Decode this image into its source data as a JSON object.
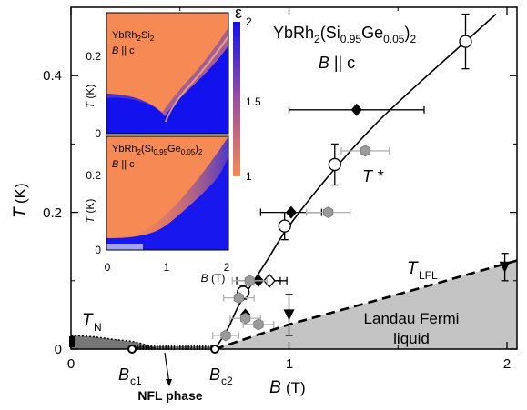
{
  "chart_data": {
    "type": "scatter",
    "title": "YbRh₂(Si₀.₉₅Ge₀.₀₅)₂",
    "subtitle": "B || c",
    "xlabel": "B",
    "xunit": "(T)",
    "ylabel": "T",
    "yunit": "(K)",
    "xlim": [
      0,
      2.1
    ],
    "ylim": [
      0,
      0.5
    ],
    "xticks": [
      "0",
      "1",
      "2"
    ],
    "yticks": [
      "0",
      "0.2",
      "0.4"
    ],
    "grid": false,
    "series": [
      {
        "name": "open-circles",
        "marker": "open-circle",
        "points": [
          {
            "x": 0.79,
            "y": 0.083,
            "xerr": 0.02,
            "yerr": 0.01
          },
          {
            "x": 0.98,
            "y": 0.18,
            "xerr": 0.0,
            "yerr": 0.02
          },
          {
            "x": 1.21,
            "y": 0.27,
            "xerr": 0.0,
            "yerr": 0.03
          },
          {
            "x": 1.81,
            "y": 0.45,
            "xerr": 0.0,
            "yerr": 0.04
          }
        ]
      },
      {
        "name": "filled-diamonds",
        "marker": "filled-diamond",
        "points": [
          {
            "x": 1.01,
            "y": 0.2,
            "xerr": 0.14
          },
          {
            "x": 1.31,
            "y": 0.35,
            "xerr": 0.31
          },
          {
            "x": 0.86,
            "y": 0.1,
            "xerr": 0.1
          },
          {
            "x": 0.8,
            "y": 0.05,
            "xerr": 0.0
          }
        ]
      },
      {
        "name": "open-diamonds",
        "marker": "open-diamond",
        "points": [
          {
            "x": 0.91,
            "y": 0.1,
            "xerr": 0.08
          }
        ]
      },
      {
        "name": "gray-hexagons",
        "marker": "gray-hexagon",
        "points": [
          {
            "x": 0.77,
            "y": 0.075,
            "xerr": 0.07
          },
          {
            "x": 0.82,
            "y": 0.1,
            "xerr": 0.08
          },
          {
            "x": 0.8,
            "y": 0.045,
            "xerr": 0.07
          },
          {
            "x": 0.71,
            "y": 0.02,
            "xerr": 0.06
          },
          {
            "x": 0.86,
            "y": 0.036,
            "xerr": 0.07
          },
          {
            "x": 1.18,
            "y": 0.2,
            "xerr": 0.1
          },
          {
            "x": 1.35,
            "y": 0.29,
            "xerr": 0.11
          }
        ]
      },
      {
        "name": "filled-triangles",
        "marker": "filled-down-triangle",
        "points": [
          {
            "x": 1.0,
            "y": 0.05,
            "yerr": 0.03
          },
          {
            "x": 1.99,
            "y": 0.12,
            "yerr": 0.02
          }
        ]
      }
    ],
    "tstar_line": [
      [
        0.66,
        0.0
      ],
      [
        0.72,
        0.03
      ],
      [
        0.78,
        0.07
      ],
      [
        0.9,
        0.13
      ],
      [
        1.0,
        0.18
      ],
      [
        1.2,
        0.26
      ],
      [
        1.4,
        0.33
      ],
      [
        1.6,
        0.39
      ],
      [
        1.81,
        0.45
      ],
      [
        1.95,
        0.49
      ]
    ],
    "tlfl_line": [
      [
        0.66,
        0.0
      ],
      [
        1.0,
        0.036
      ],
      [
        1.5,
        0.08
      ],
      [
        2.05,
        0.13
      ]
    ],
    "tn_line": [
      [
        0.0,
        0.02
      ],
      [
        0.1,
        0.018
      ],
      [
        0.2,
        0.014
      ],
      [
        0.3,
        0.01
      ],
      [
        0.4,
        0.0
      ]
    ],
    "annotations": {
      "tstar": "T *",
      "tlfl_main": "T",
      "tlfl_sub": "LFL",
      "tn_main": "T",
      "tn_sub": "N",
      "lfl_line1": "Landau Fermi",
      "lfl_line2": "liquid",
      "nfl": "NFL phase",
      "bc1_main": "B",
      "bc1_sub": "c1",
      "bc2_main": "B",
      "bc2_sub": "c2"
    },
    "critical_points": [
      0.28,
      0.66
    ],
    "colors": {
      "lfl_fill": "#c4c4c4",
      "afm_fill": "#777777",
      "inset_low": "#f58a55",
      "inset_high": "#1010ee",
      "hexagon": "#9a9a9a"
    },
    "insets": [
      {
        "title_main": "YbRh",
        "title_sub1": "2",
        "title_mid": "Si",
        "title_sub2": "2",
        "title_end": "",
        "field": "B || c",
        "ylabel": "T (K)",
        "yticks": [
          "0",
          "0.2"
        ],
        "xticks": [
          "",
          "",
          ""
        ]
      },
      {
        "title_main": "YbRh",
        "title_sub1": "2",
        "title_mid": "(Si",
        "title_sub2": "0.95",
        "title_end": "Ge",
        "title_sub3": "0.05",
        "title_tail": ")",
        "title_sub4": "2",
        "field": "B || c",
        "ylabel": "T (K)",
        "yticks": [
          "0",
          "0.2"
        ],
        "xticks": [
          "0",
          "1",
          "2"
        ],
        "xlabel": "B (T)"
      }
    ],
    "colorbar": {
      "label": "ε",
      "ticks": [
        "2",
        "1.5",
        "1"
      ]
    }
  }
}
